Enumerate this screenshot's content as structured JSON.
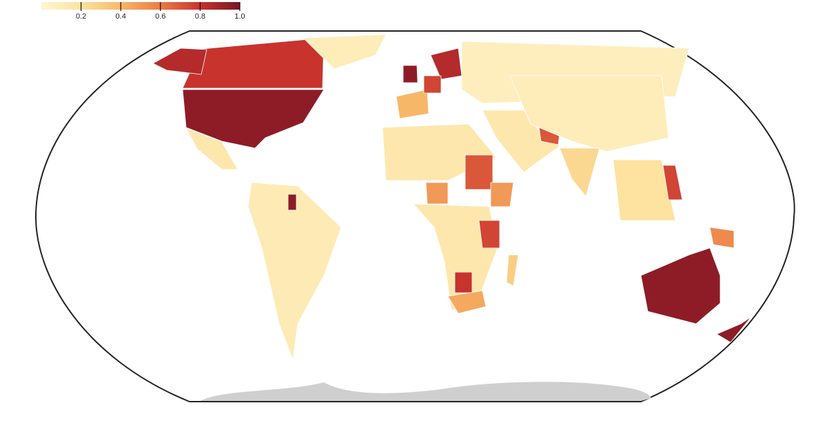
{
  "legend": {
    "range": [
      0,
      1
    ],
    "ticks": [
      0.2,
      0.4,
      0.6,
      0.8,
      {
        "value": 1,
        "label": "1.0"
      }
    ],
    "colors": [
      "#fff6d2",
      "#fde2a0",
      "#f6b868",
      "#ec7a45",
      "#c8332e",
      "#7a1424"
    ]
  },
  "regions": {
    "values": [
      0.95,
      0.8,
      0.85,
      0.1,
      0.15,
      0.12,
      0.4,
      0.95,
      0.85,
      0.75,
      0.08,
      0.15,
      0.5,
      0.7,
      0.5,
      0.15,
      0.75,
      0.8,
      0.45,
      0.15,
      0.7,
      0.1,
      0.2,
      0.75,
      0.55,
      0.95,
      0.95,
      0.95,
      0.3,
      0.25
    ]
  }
}
